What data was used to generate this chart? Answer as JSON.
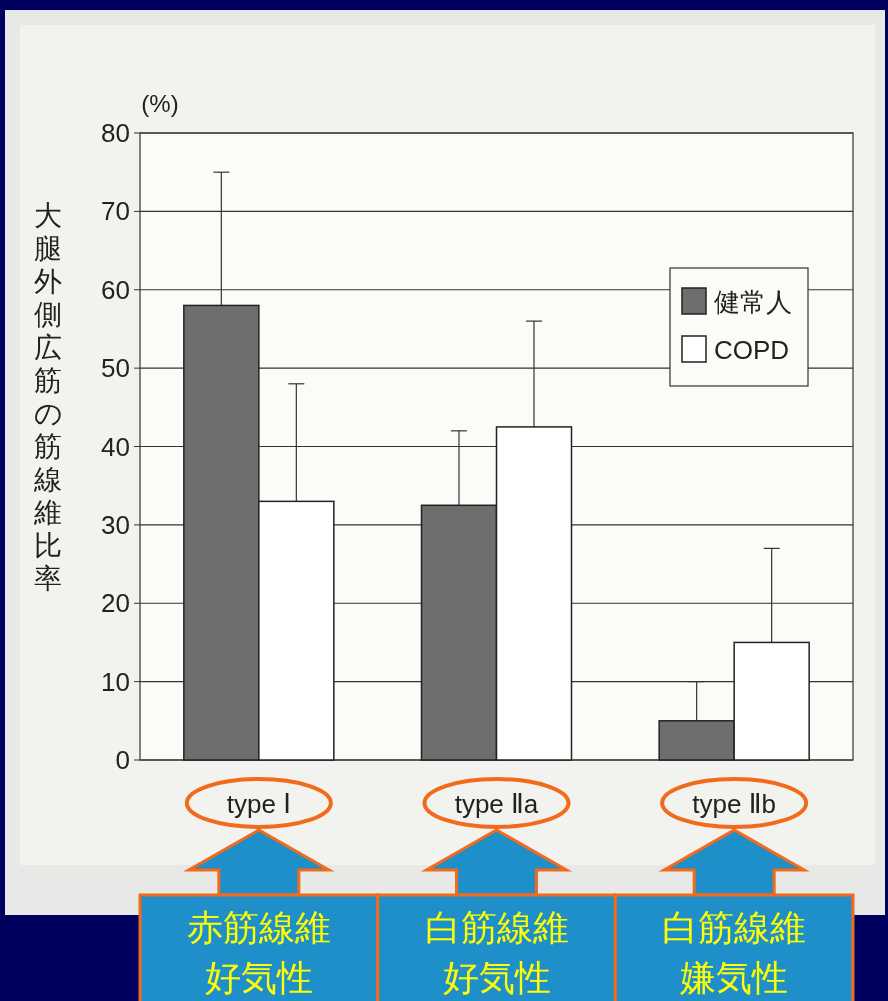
{
  "chart_data": {
    "type": "bar",
    "ylabel": "大腿外側広筋の筋線維比率",
    "categories": [
      "type Ⅰ",
      "type Ⅱa",
      "type Ⅱb"
    ],
    "series": [
      {
        "name": "健常人",
        "color": "#6e6e6e",
        "values": [
          58,
          32.5,
          5
        ],
        "errors": [
          [
            58,
            75
          ],
          [
            32.5,
            42
          ],
          [
            5,
            10
          ]
        ]
      },
      {
        "name": "COPD",
        "color": "#ffffff",
        "values": [
          33,
          42.5,
          15
        ],
        "errors": [
          [
            33,
            48
          ],
          [
            42.5,
            56
          ],
          [
            15,
            27
          ]
        ]
      }
    ],
    "ylim": [
      0,
      80
    ],
    "yticks": [
      0,
      10,
      20,
      30,
      40,
      50,
      60,
      70,
      80
    ],
    "grid": "y",
    "legend": "top right",
    "annotations": [
      "(%)",
      "赤筋線維",
      "好気性",
      "白筋線維",
      "好気性",
      "白筋線維",
      "嫌気性"
    ]
  }
}
